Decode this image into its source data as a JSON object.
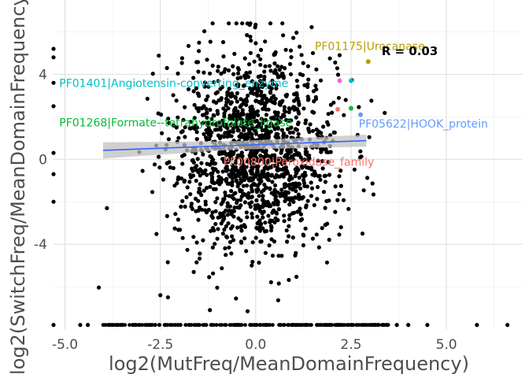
{
  "chart_data": {
    "type": "scatter",
    "xlabel": "log2(MutFreq/MeanDomainFrequency)",
    "ylabel": "log2(SwitchFreq/MeanDomainFrequency)",
    "xlim": [
      -5.3,
      7.0
    ],
    "ylim": [
      -8.0,
      7.5
    ],
    "x_ticks": [
      -5.0,
      -2.5,
      0.0,
      2.5,
      5.0
    ],
    "x_tick_labels": [
      "-5.0",
      "-2.5",
      "0.0",
      "2.5",
      "5.0"
    ],
    "y_ticks": [
      -4,
      0,
      4
    ],
    "y_tick_labels": [
      "-4",
      "0",
      "4"
    ],
    "grid": true,
    "background": "minimal",
    "point_color": "#000000",
    "point_cloud": {
      "n": 1500,
      "x_center": 0.0,
      "x_spread": 1.05,
      "y_center": 0.4,
      "y_spread": 2.3,
      "x_range": [
        -4.2,
        3.6
      ],
      "y_range": [
        -7.2,
        6.4
      ],
      "baseline_y": -7.8,
      "baseline_x_range": [
        -4.0,
        3.5
      ]
    },
    "extra_points": [
      {
        "x": -5.3,
        "y": 5.2
      },
      {
        "x": -5.3,
        "y": 4.8
      },
      {
        "x": -5.3,
        "y": 3.6
      },
      {
        "x": -5.3,
        "y": 2.5
      },
      {
        "x": -5.3,
        "y": 0.3
      },
      {
        "x": -5.3,
        "y": -0.7
      },
      {
        "x": -5.3,
        "y": -2.0
      },
      {
        "x": -3.9,
        "y": -2.3
      },
      {
        "x": -2.5,
        "y": -6.4
      },
      {
        "x": -2.3,
        "y": -6.5
      },
      {
        "x": -1.2,
        "y": -7.1
      },
      {
        "x": 2.8,
        "y": -3.5
      },
      {
        "x": 2.2,
        "y": 4.9
      },
      {
        "x": 1.5,
        "y": 5.0
      },
      {
        "x": -5.3,
        "y": -7.8
      },
      {
        "x": -4.6,
        "y": -7.8
      },
      {
        "x": -4.4,
        "y": -7.8
      },
      {
        "x": 3.7,
        "y": -7.8
      },
      {
        "x": 4.0,
        "y": -7.8
      },
      {
        "x": 4.5,
        "y": -7.8
      },
      {
        "x": 5.8,
        "y": -7.8
      },
      {
        "x": 6.6,
        "y": -7.8
      }
    ],
    "trend_line": {
      "color": "#3366ff",
      "band_color": "#c0c0c0",
      "x": [
        -4.0,
        2.9
      ],
      "y": [
        0.42,
        0.88
      ],
      "band_halfwidth": [
        0.38,
        0.28
      ]
    },
    "highlighted": [
      {
        "label": "PF01175|Urocanase",
        "x": 2.95,
        "y": 4.6,
        "color": "#b8a000",
        "label_x": 1.55,
        "label_y": 5.15,
        "anchor": "start"
      },
      {
        "label": "PF01401|Angiotensin-converting_enzyme",
        "x": 2.5,
        "y": 3.7,
        "color": "#00bfc4",
        "label_x": -5.15,
        "label_y": 3.4,
        "anchor": "start"
      },
      {
        "label": "PF01268|Formate--tetrahydrofolate_ligase",
        "x": 2.5,
        "y": 2.4,
        "color": "#00ba38",
        "label_x": -5.15,
        "label_y": 1.55,
        "anchor": "start"
      },
      {
        "label": "PF05622|HOOK_protein",
        "x": 2.75,
        "y": 2.1,
        "color": "#619cff",
        "label_x": 2.7,
        "label_y": 1.5,
        "anchor": "start"
      },
      {
        "label": "PF00800|Peroxidase_family",
        "x": 2.15,
        "y": 2.35,
        "color": "#f8766d",
        "label_x": -0.85,
        "label_y": -0.3,
        "anchor": "start"
      },
      {
        "label": "",
        "x": 2.2,
        "y": 3.7,
        "color": "#f564e3",
        "label_x": 0,
        "label_y": 0,
        "anchor": "start"
      }
    ],
    "annotation": {
      "text": "R = 0.03",
      "x": 3.3,
      "y": 4.9
    }
  }
}
